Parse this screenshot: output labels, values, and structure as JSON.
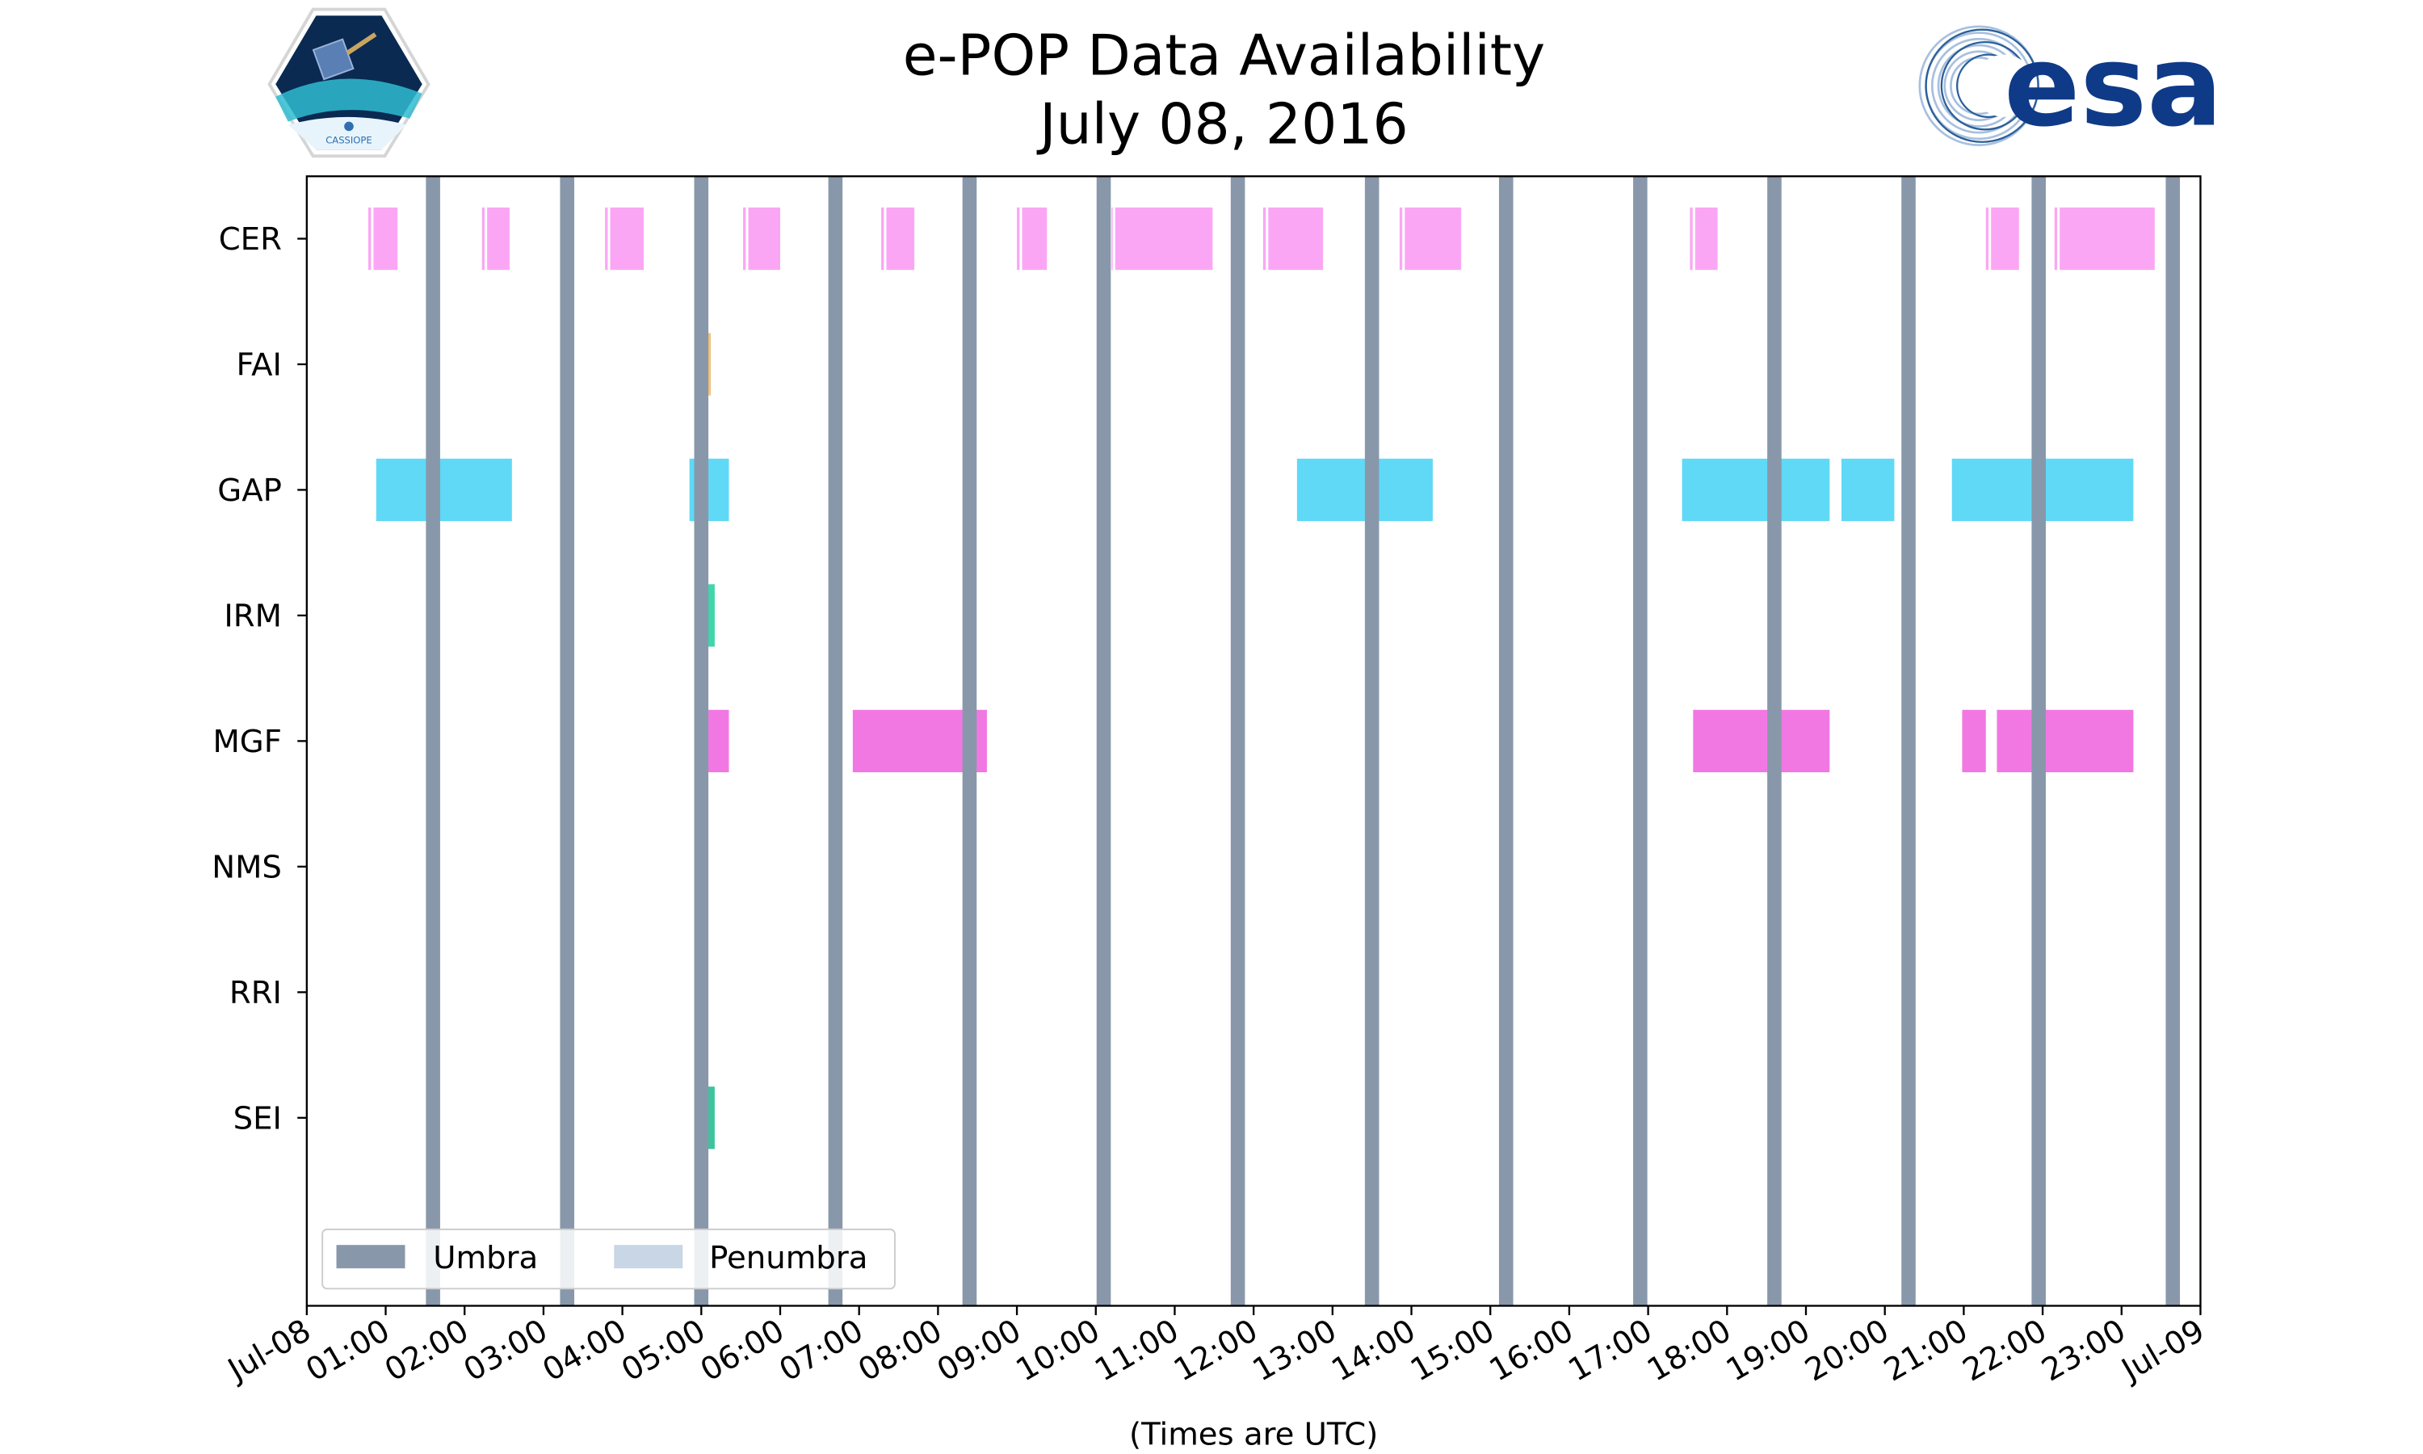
{
  "chart_data": {
    "type": "timeline",
    "title": "e-POP Data Availability",
    "subtitle": "July 08, 2016",
    "xlabel": "(Times are UTC)",
    "x_range_hours": [
      0,
      24
    ],
    "x_tick_labels": [
      "Jul-08",
      "01:00",
      "02:00",
      "03:00",
      "04:00",
      "05:00",
      "06:00",
      "07:00",
      "08:00",
      "09:00",
      "10:00",
      "11:00",
      "12:00",
      "13:00",
      "14:00",
      "15:00",
      "16:00",
      "17:00",
      "18:00",
      "19:00",
      "20:00",
      "21:00",
      "22:00",
      "23:00",
      "Jul-09"
    ],
    "instruments": [
      "CER",
      "FAI",
      "GAP",
      "IRM",
      "MGF",
      "NMS",
      "RRI",
      "SEI"
    ],
    "colors": {
      "CER": "#fba6f4",
      "FAI": "#f5c27a",
      "GAP": "#5fd9f6",
      "IRM": "#3fd6aa",
      "MGF": "#f178e3",
      "SEI": "#3cc49c",
      "umbra": "#8898aa",
      "penumbra": "#c8d6e6"
    },
    "intervals": {
      "CER": [
        [
          0.78,
          1.15
        ],
        [
          2.22,
          2.57
        ],
        [
          3.78,
          4.27
        ],
        [
          5.53,
          6.0
        ],
        [
          7.28,
          7.7
        ],
        [
          9.0,
          9.38
        ],
        [
          10.2,
          11.48
        ],
        [
          12.12,
          12.88
        ],
        [
          13.85,
          14.63
        ],
        [
          17.53,
          17.88
        ],
        [
          21.28,
          21.7
        ],
        [
          22.15,
          23.42
        ]
      ],
      "FAI": [
        [
          5.08,
          5.12
        ]
      ],
      "GAP": [
        [
          0.88,
          2.6
        ],
        [
          4.85,
          5.35
        ],
        [
          12.55,
          14.27
        ],
        [
          17.43,
          19.3
        ],
        [
          19.45,
          20.12
        ],
        [
          20.85,
          23.15
        ]
      ],
      "IRM": [
        [
          5.07,
          5.17
        ]
      ],
      "MGF": [
        [
          4.98,
          5.35
        ],
        [
          6.92,
          8.62
        ],
        [
          17.57,
          19.3
        ],
        [
          20.98,
          21.28
        ],
        [
          21.42,
          23.15
        ]
      ],
      "NMS": [],
      "RRI": [],
      "SEI": [
        [
          5.07,
          5.17
        ]
      ]
    },
    "cer_splits": [
      0.83,
      2.27,
      3.83,
      5.58,
      7.33,
      9.05,
      10.23,
      12.17,
      13.9,
      17.58,
      21.33,
      22.2
    ],
    "umbra_centers": [
      1.6,
      3.3,
      5.0,
      6.7,
      8.4,
      10.1,
      11.8,
      13.5,
      15.2,
      16.9,
      18.6,
      20.3,
      21.95,
      23.65
    ],
    "umbra_width_hours": 0.18,
    "legend": {
      "items": [
        "Umbra",
        "Penumbra"
      ],
      "position": "lower-left"
    }
  },
  "logos": {
    "left": {
      "caption": "CASSIOPE"
    },
    "right": {
      "text": "esa"
    }
  }
}
